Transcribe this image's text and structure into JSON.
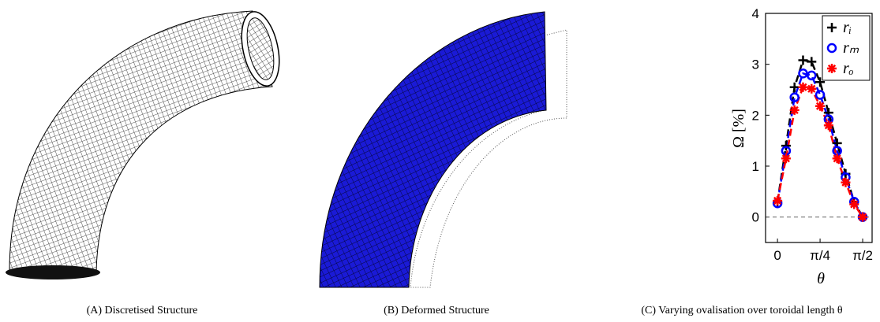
{
  "captions": [
    "(A) Discretised Structure",
    "(B) Deformed Structure",
    "(C) Varying ovalisation over toroidal length θ"
  ],
  "chart_data": {
    "type": "line",
    "x_label": "θ",
    "y_label": "Ω [%]",
    "x": [
      0,
      0.1571,
      0.3142,
      0.4712,
      0.6283,
      0.7854,
      0.9425,
      1.0996,
      1.2566,
      1.4137,
      1.5708
    ],
    "series": [
      {
        "name": "rᵢ",
        "color": "#000000",
        "marker": "plus",
        "values": [
          0.3,
          1.4,
          2.55,
          3.08,
          3.05,
          2.65,
          2.05,
          1.45,
          0.85,
          0.3,
          0
        ]
      },
      {
        "name": "rₘ",
        "color": "#0000ff",
        "marker": "circle",
        "values": [
          0.27,
          1.3,
          2.35,
          2.82,
          2.78,
          2.4,
          1.92,
          1.3,
          0.78,
          0.3,
          0
        ]
      },
      {
        "name": "rₒ",
        "color": "#ff0000",
        "marker": "star",
        "values": [
          0.32,
          1.15,
          2.1,
          2.55,
          2.52,
          2.18,
          1.8,
          1.15,
          0.68,
          0.25,
          0
        ]
      }
    ],
    "reference_line": 0,
    "xlim": [
      -0.22,
      1.745
    ],
    "ylim": [
      -0.5,
      4
    ],
    "xticks": [
      0,
      {
        "value": 0.7854,
        "label": "π/4"
      },
      {
        "value": 1.5708,
        "label": "π/2"
      }
    ],
    "yticks": [
      0,
      1,
      2,
      3,
      4
    ],
    "legend": "top-right"
  }
}
